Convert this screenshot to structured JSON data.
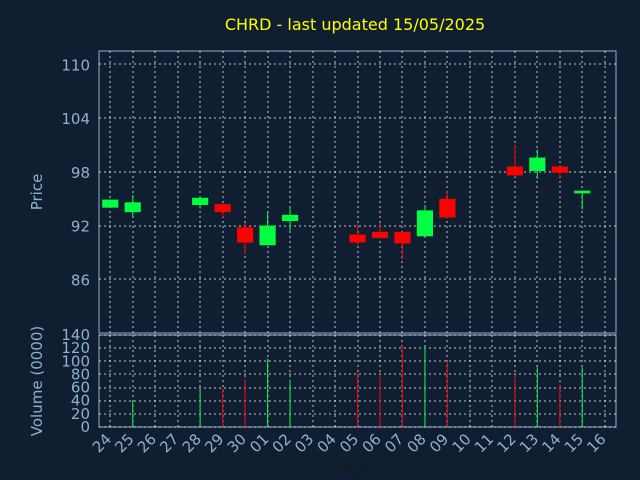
{
  "chart_data": {
    "type": "candlestick",
    "title": "CHRD - last updated 15/05/2025",
    "xlabel": "Day",
    "price_axis": {
      "label": "Price",
      "ylim": [
        80,
        111.5
      ],
      "ticks": [
        86,
        92,
        98,
        104,
        110
      ],
      "tick_labels": [
        "86",
        "92",
        "98",
        "104",
        "110"
      ]
    },
    "volume_axis": {
      "label": "Volume (0000)",
      "ylim": [
        0,
        140
      ],
      "ticks": [
        0,
        20,
        40,
        60,
        80,
        100,
        120,
        140
      ],
      "tick_labels": [
        "0",
        "20",
        "40",
        "60",
        "80",
        "100",
        "120",
        "140"
      ]
    },
    "days": [
      "24",
      "25",
      "26",
      "27",
      "28",
      "29",
      "30",
      "01",
      "02",
      "03",
      "04",
      "05",
      "06",
      "07",
      "08",
      "09",
      "10",
      "11",
      "12",
      "13",
      "14",
      "15",
      "16"
    ],
    "candles": [
      {
        "day": "24",
        "open": 94.0,
        "high": 94.9,
        "low": 94.0,
        "close": 94.9,
        "volume": 0
      },
      {
        "day": "25",
        "open": 93.5,
        "high": 95.4,
        "low": 93.0,
        "close": 94.6,
        "volume": 41
      },
      {
        "day": "28",
        "open": 94.3,
        "high": 95.3,
        "low": 93.9,
        "close": 95.1,
        "volume": 58
      },
      {
        "day": "29",
        "open": 94.4,
        "high": 94.5,
        "low": 92.8,
        "close": 93.5,
        "volume": 59
      },
      {
        "day": "30",
        "open": 91.8,
        "high": 92.3,
        "low": 88.8,
        "close": 90.1,
        "volume": 73
      },
      {
        "day": "01",
        "open": 89.8,
        "high": 93.5,
        "low": 89.8,
        "close": 92.0,
        "volume": 104
      },
      {
        "day": "02",
        "open": 92.5,
        "high": 94.0,
        "low": 91.4,
        "close": 93.2,
        "volume": 72
      },
      {
        "day": "05",
        "open": 91.0,
        "high": 92.2,
        "low": 89.9,
        "close": 90.1,
        "volume": 82
      },
      {
        "day": "06",
        "open": 91.3,
        "high": 92.3,
        "low": 90.5,
        "close": 90.6,
        "volume": 80
      },
      {
        "day": "07",
        "open": 91.3,
        "high": 91.3,
        "low": 88.2,
        "close": 90.0,
        "volume": 125
      },
      {
        "day": "08",
        "open": 90.8,
        "high": 94.3,
        "low": 90.8,
        "close": 93.7,
        "volume": 121
      },
      {
        "day": "09",
        "open": 95.0,
        "high": 95.9,
        "low": 92.8,
        "close": 92.9,
        "volume": 100
      },
      {
        "day": "12",
        "open": 98.6,
        "high": 101.0,
        "low": 97.5,
        "close": 97.6,
        "volume": 80
      },
      {
        "day": "13",
        "open": 98.1,
        "high": 100.5,
        "low": 97.2,
        "close": 99.6,
        "volume": 91
      },
      {
        "day": "14",
        "open": 98.6,
        "high": 98.6,
        "low": 97.4,
        "close": 97.9,
        "volume": 64
      },
      {
        "day": "15",
        "open": 95.6,
        "high": 95.9,
        "low": 93.8,
        "close": 95.9,
        "volume": 91
      }
    ],
    "grid": true,
    "colors": {
      "background": "#0f1e30",
      "up": "#00ff40",
      "down": "#ff0000",
      "axis_text": "#8fb0d0",
      "title": "#ffff00",
      "grid": "#ffffff",
      "frame": "#8fb0d0"
    }
  }
}
